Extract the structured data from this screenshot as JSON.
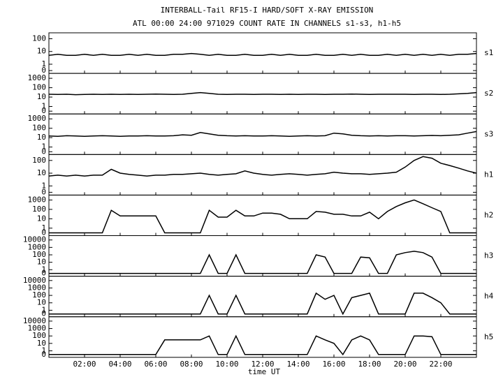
{
  "chart_data": {
    "type": "line",
    "title": "INTERBALL-Tail RF15-I HARD/SOFT X-RAY EMISSION",
    "subtitle": "ATL 00:00 24:00 971029  COUNT RATE IN CHANNELS s1-s3, h1-h5",
    "xlabel": "time UT",
    "yscale": "log",
    "xlim": [
      0,
      24
    ],
    "xticks": [
      {
        "value": 2,
        "label": "02:00"
      },
      {
        "value": 4,
        "label": "04:00"
      },
      {
        "value": 6,
        "label": "06:00"
      },
      {
        "value": 8,
        "label": "08:00"
      },
      {
        "value": 10,
        "label": "10:00"
      },
      {
        "value": 12,
        "label": "12:00"
      },
      {
        "value": 14,
        "label": "14:00"
      },
      {
        "value": 16,
        "label": "16:00"
      },
      {
        "value": 18,
        "label": "18:00"
      },
      {
        "value": 20,
        "label": "20:00"
      },
      {
        "value": 22,
        "label": "22:00"
      }
    ],
    "x": [
      0,
      0.5,
      1,
      1.5,
      2,
      2.5,
      3,
      3.5,
      4,
      4.5,
      5,
      5.5,
      6,
      6.5,
      7,
      7.5,
      8,
      8.5,
      9,
      9.5,
      10,
      10.5,
      11,
      11.5,
      12,
      12.5,
      13,
      13.5,
      14,
      14.5,
      15,
      15.5,
      16,
      16.5,
      17,
      17.5,
      18,
      18.5,
      19,
      19.5,
      20,
      20.5,
      21,
      21.5,
      22,
      22.5,
      23,
      23.5,
      24
    ],
    "series": [
      {
        "name": "s1",
        "color": "#000000",
        "ylim": [
          0,
          200
        ],
        "yticks": [
          0,
          1,
          10,
          100
        ],
        "values": [
          5,
          6,
          5,
          5,
          6,
          5,
          6,
          5,
          5,
          6,
          5,
          6,
          5,
          5,
          6,
          6,
          7,
          6,
          5,
          6,
          5,
          5,
          6,
          5,
          5,
          6,
          5,
          6,
          5,
          5,
          6,
          5,
          5,
          6,
          5,
          6,
          5,
          5,
          6,
          5,
          6,
          5,
          6,
          5,
          6,
          5,
          6,
          6,
          7
        ]
      },
      {
        "name": "s2",
        "color": "#000000",
        "ylim": [
          0,
          2000
        ],
        "yticks": [
          0,
          1,
          10,
          100,
          1000
        ],
        "values": [
          20,
          19,
          20,
          18,
          19,
          20,
          19,
          20,
          19,
          20,
          19,
          20,
          21,
          20,
          19,
          20,
          25,
          30,
          25,
          20,
          19,
          20,
          20,
          19,
          20,
          20,
          19,
          20,
          19,
          20,
          20,
          19,
          20,
          20,
          21,
          20,
          19,
          20,
          20,
          20,
          20,
          19,
          20,
          20,
          19,
          20,
          22,
          25,
          30
        ]
      },
      {
        "name": "s3",
        "color": "#000000",
        "ylim": [
          0,
          2000
        ],
        "yticks": [
          0,
          1,
          10,
          100,
          1000
        ],
        "values": [
          15,
          14,
          16,
          15,
          14,
          15,
          16,
          15,
          14,
          15,
          15,
          16,
          15,
          15,
          16,
          20,
          18,
          35,
          25,
          18,
          16,
          15,
          16,
          15,
          15,
          16,
          15,
          14,
          15,
          16,
          15,
          16,
          30,
          25,
          18,
          16,
          15,
          16,
          15,
          16,
          16,
          15,
          16,
          17,
          16,
          18,
          20,
          30,
          45
        ]
      },
      {
        "name": "h1",
        "color": "#000000",
        "ylim": [
          0,
          200
        ],
        "yticks": [
          0,
          1,
          10,
          100
        ],
        "values": [
          6,
          7,
          6,
          7,
          6,
          7,
          7,
          20,
          10,
          8,
          7,
          6,
          7,
          7,
          8,
          8,
          9,
          10,
          8,
          7,
          8,
          9,
          15,
          10,
          8,
          7,
          8,
          9,
          8,
          7,
          8,
          9,
          12,
          10,
          9,
          9,
          8,
          9,
          10,
          12,
          30,
          100,
          200,
          150,
          60,
          40,
          25,
          15,
          10
        ]
      },
      {
        "name": "h2",
        "color": "#000000",
        "ylim": [
          0,
          2000
        ],
        "yticks": [
          0,
          1,
          10,
          100,
          1000
        ],
        "values": [
          0,
          0,
          0,
          0,
          0,
          0,
          0,
          80,
          20,
          20,
          20,
          20,
          20,
          0,
          0,
          0,
          0,
          0,
          80,
          15,
          15,
          80,
          20,
          20,
          40,
          40,
          30,
          10,
          10,
          10,
          60,
          50,
          30,
          30,
          20,
          20,
          50,
          10,
          60,
          200,
          500,
          1000,
          400,
          150,
          60,
          0,
          0,
          0,
          0
        ]
      },
      {
        "name": "h3",
        "color": "#000000",
        "ylim": [
          0,
          20000
        ],
        "yticks": [
          0,
          1,
          10,
          100,
          1000,
          10000
        ],
        "values": [
          0,
          0,
          0,
          0,
          0,
          0,
          0,
          0,
          0,
          0,
          0,
          0,
          0,
          0,
          0,
          0,
          0,
          0,
          100,
          0,
          0,
          100,
          0,
          0,
          0,
          0,
          0,
          0,
          0,
          0,
          100,
          50,
          0,
          0,
          0,
          50,
          40,
          0,
          0,
          100,
          200,
          300,
          200,
          50,
          0,
          0,
          0,
          0,
          0
        ]
      },
      {
        "name": "h4",
        "color": "#000000",
        "ylim": [
          0,
          20000
        ],
        "yticks": [
          0,
          1,
          10,
          100,
          1000,
          10000
        ],
        "values": [
          0,
          0,
          0,
          0,
          0,
          0,
          0,
          0,
          0,
          0,
          0,
          0,
          0,
          0,
          0,
          0,
          0,
          0,
          100,
          0,
          0,
          100,
          0,
          0,
          0,
          0,
          0,
          0,
          0,
          0,
          200,
          30,
          100,
          0,
          50,
          100,
          200,
          0,
          0,
          0,
          0,
          200,
          200,
          50,
          10,
          0,
          0,
          0,
          0
        ]
      },
      {
        "name": "h5",
        "color": "#000000",
        "ylim": [
          0,
          20000
        ],
        "yticks": [
          0,
          1,
          10,
          100,
          1000,
          10000
        ],
        "values": [
          0,
          0,
          0,
          0,
          0,
          0,
          0,
          0,
          0,
          0,
          0,
          0,
          0,
          30,
          30,
          30,
          30,
          30,
          100,
          0,
          0,
          100,
          0,
          0,
          0,
          0,
          0,
          0,
          0,
          0,
          100,
          30,
          10,
          0,
          30,
          100,
          30,
          0,
          0,
          0,
          0,
          100,
          100,
          80,
          0,
          0,
          0,
          0,
          0
        ]
      }
    ]
  }
}
